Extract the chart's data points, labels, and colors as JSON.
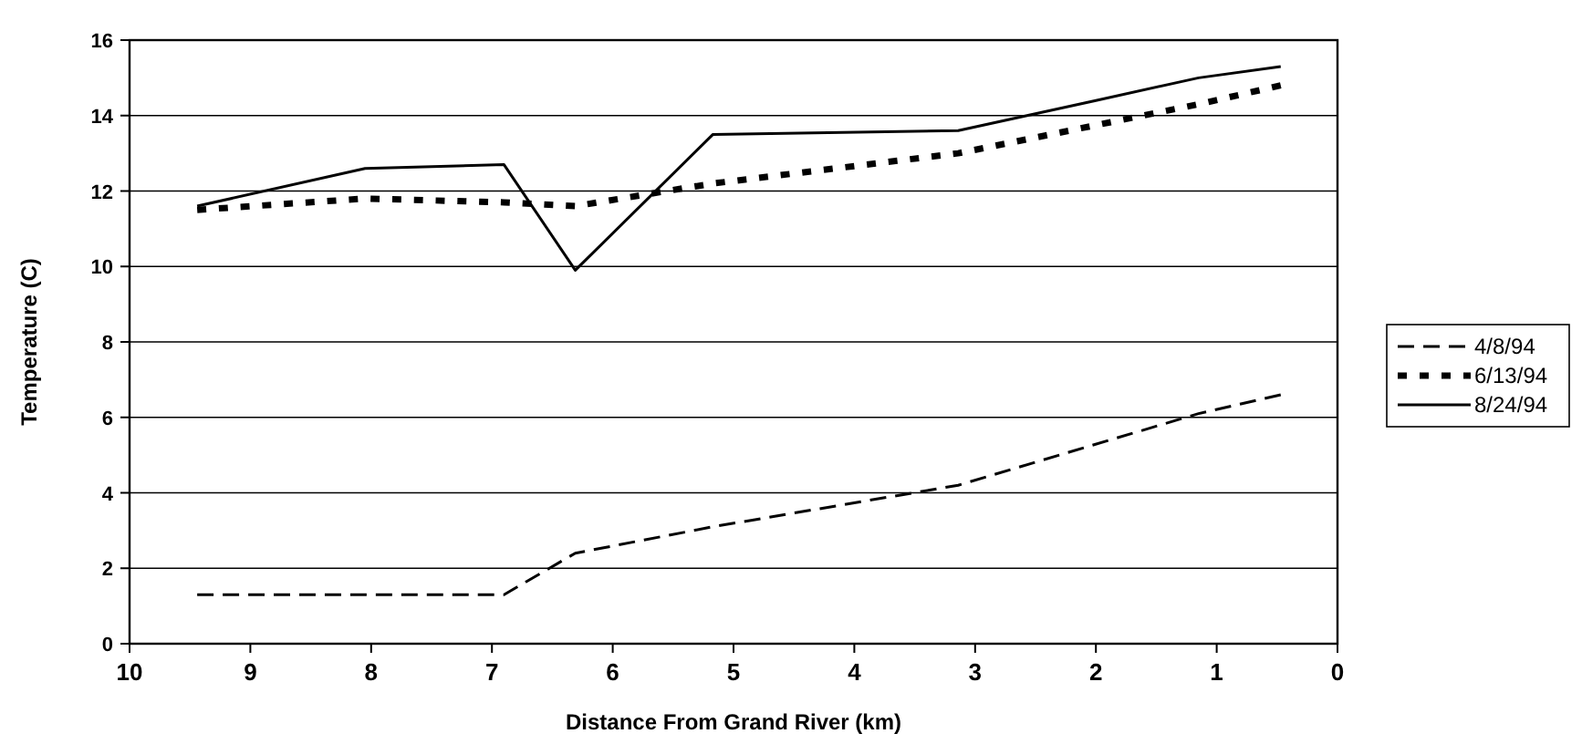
{
  "chart_data": {
    "type": "line",
    "xlabel": "Distance From Grand River (km)",
    "ylabel": "Temperature (C)",
    "xlim": [
      10,
      0
    ],
    "xticks": [
      10,
      9,
      8,
      7,
      6,
      5,
      4,
      3,
      2,
      1,
      0
    ],
    "ylim": [
      0,
      16
    ],
    "yticks": [
      0,
      2,
      4,
      6,
      8,
      10,
      12,
      14,
      16
    ],
    "grid": "y",
    "legend": "right",
    "series": [
      {
        "name": "4/8/94",
        "color": "#000000",
        "line_style": "dashed",
        "x": [
          9.44,
          8.05,
          6.9,
          6.31,
          5.17,
          3.14,
          1.15,
          0.47
        ],
        "values": [
          1.3,
          1.3,
          1.3,
          2.4,
          3.1,
          4.2,
          6.1,
          6.6
        ]
      },
      {
        "name": "6/13/94",
        "color": "#000000",
        "line_style": "dotted",
        "x": [
          9.44,
          8.05,
          6.9,
          6.31,
          5.17,
          3.14,
          1.15,
          0.47
        ],
        "values": [
          11.5,
          11.8,
          11.7,
          11.6,
          12.2,
          13.0,
          14.3,
          14.8
        ]
      },
      {
        "name": "8/24/94",
        "color": "#000000",
        "line_style": "solid",
        "x": [
          9.44,
          8.05,
          6.9,
          6.31,
          5.17,
          3.14,
          2,
          1.15,
          0.47
        ],
        "values": [
          11.6,
          12.6,
          12.7,
          9.9,
          13.5,
          13.6,
          14.4,
          15.0,
          15.3
        ]
      }
    ]
  }
}
